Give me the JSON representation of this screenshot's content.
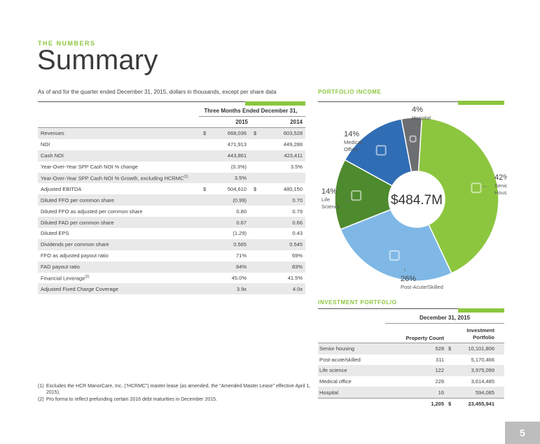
{
  "header": {
    "kicker": "THE NUMBERS",
    "title": "Summary",
    "subtitle": "As of and for the quarter ended December 31, 2015, dollars in thousands, except per share data"
  },
  "summary_table": {
    "period_header": "Three Months Ended December 31,",
    "col1": "2015",
    "col2": "2014",
    "rows": [
      {
        "label": "Revenues",
        "cur1": "$",
        "v1": "668,036",
        "cur2": "$",
        "v2": "603,528"
      },
      {
        "label": "NOI",
        "cur1": "",
        "v1": "471,913",
        "cur2": "",
        "v2": "449,288"
      },
      {
        "label": "Cash NOI",
        "cur1": "",
        "v1": "443,861",
        "cur2": "",
        "v2": "423,411"
      },
      {
        "label": "Year-Over-Year SPP Cash NOI % change",
        "cur1": "",
        "v1": "(0.3%)",
        "cur2": "",
        "v2": "3.5%"
      },
      {
        "label": "Year-Over-Year SPP Cash NOI % Growth, excluding HCRMC",
        "sup": "(1)",
        "cur1": "",
        "v1": "3.5%",
        "cur2": "",
        "v2": ""
      },
      {
        "label": "Adjusted EBITDA",
        "cur1": "$",
        "v1": "504,610",
        "cur2": "$",
        "v2": "480,150"
      },
      {
        "label": "Diluted FFO per common share",
        "cur1": "",
        "v1": "(0.99)",
        "cur2": "",
        "v2": "0.70"
      },
      {
        "label": "Diluted FFO as adjusted per common share",
        "cur1": "",
        "v1": "0.80",
        "cur2": "",
        "v2": "0.79"
      },
      {
        "label": "Diluted FAD per common share",
        "cur1": "",
        "v1": "0.67",
        "cur2": "",
        "v2": "0.66"
      },
      {
        "label": "Diluted EPS",
        "cur1": "",
        "v1": "(1.29)",
        "cur2": "",
        "v2": "0.43"
      },
      {
        "label": "Dividends per common share",
        "cur1": "",
        "v1": "0.565",
        "cur2": "",
        "v2": "0.545"
      },
      {
        "label": "FFO as adjusted payout ratio",
        "cur1": "",
        "v1": "71%",
        "cur2": "",
        "v2": "69%"
      },
      {
        "label": "FAD payout ratio",
        "cur1": "",
        "v1": "84%",
        "cur2": "",
        "v2": "83%"
      },
      {
        "label": "Financial Leverage",
        "sup": "(2)",
        "cur1": "",
        "v1": "45.0%",
        "cur2": "",
        "v2": "41.5%"
      },
      {
        "label": "Adjusted Fixed Charge Coverage",
        "cur1": "",
        "v1": "3.9x",
        "cur2": "",
        "v2": "4.0x"
      }
    ]
  },
  "footnotes": [
    {
      "n": "(1)",
      "text": "Excludes the HCR ManorCare, Inc. (“HCRMC”) master lease (as amended, the “Amended Master Lease” effective April 1, 2015)."
    },
    {
      "n": "(2)",
      "text": "Pro forma to reflect prefunding certain 2016 debt maturities in December 2015."
    }
  ],
  "portfolio_income": {
    "heading": "PORTFOLIO INCOME",
    "center_label": "$484.7M",
    "slices": [
      {
        "pct": "42%",
        "name_line1": "Senior",
        "name_line2": "Housing",
        "value": 42,
        "color": "#8cc63f",
        "icon": "house-icon"
      },
      {
        "pct": "26%",
        "name_line1": "Post-Acute/Skilled",
        "name_line2": "",
        "value": 26,
        "color": "#7fb8e6",
        "icon": "nurse-icon"
      },
      {
        "pct": "14%",
        "name_line1": "Life",
        "name_line2": "Science",
        "value": 14,
        "color": "#4e8a2e",
        "icon": "flask-icon"
      },
      {
        "pct": "14%",
        "name_line1": "Medical",
        "name_line2": "Office",
        "value": 14,
        "color": "#2f6db5",
        "icon": "stethoscope-icon"
      },
      {
        "pct": "4%",
        "name_line1": "Hospital",
        "name_line2": "",
        "value": 4,
        "color": "#6d6e71",
        "icon": "hospital-icon"
      }
    ],
    "colors": {
      "accent": "#8cc63f"
    }
  },
  "investment_portfolio": {
    "heading": "INVESTMENT PORTFOLIO",
    "date_header": "December 31, 2015",
    "col_count": "Property Count",
    "col_invest_line1": "Investment",
    "col_invest_line2": "Portfolio",
    "rows": [
      {
        "label": "Senior housing",
        "count": "528",
        "cur": "$",
        "value": "10,101,806"
      },
      {
        "label": "Post-acute/skilled",
        "count": "311",
        "cur": "",
        "value": "5,170,466"
      },
      {
        "label": "Life science",
        "count": "122",
        "cur": "",
        "value": "3,975,099"
      },
      {
        "label": "Medical office",
        "count": "228",
        "cur": "",
        "value": "3,614,485"
      },
      {
        "label": "Hospital",
        "count": "16",
        "cur": "",
        "value": "594,085"
      }
    ],
    "total": {
      "count": "1,205",
      "cur": "$",
      "value": "23,455,941"
    }
  },
  "page_number": "5"
}
